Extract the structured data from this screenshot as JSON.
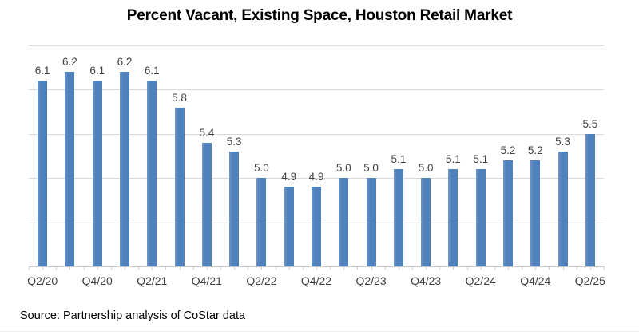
{
  "title": "Percent Vacant, Existing Space, Houston Retail Market",
  "source": "Source: Partnership analysis of CoStar data",
  "chart_data": {
    "type": "bar",
    "title": "Percent Vacant, Existing Space, Houston Retail Market",
    "values": [
      6.1,
      6.2,
      6.1,
      6.2,
      6.1,
      5.8,
      5.4,
      5.3,
      5.0,
      4.9,
      4.9,
      5.0,
      5.0,
      5.1,
      5.0,
      5.1,
      5.1,
      5.2,
      5.2,
      5.3,
      5.5
    ],
    "labels": [
      "6.1",
      "6.2",
      "6.1",
      "6.2",
      "6.1",
      "5.8",
      "5.4",
      "5.3",
      "5.0",
      "4.9",
      "4.9",
      "5.0",
      "5.0",
      "5.1",
      "5.0",
      "5.1",
      "5.1",
      "5.2",
      "5.2",
      "5.3",
      "5.5"
    ],
    "x_tick_labels": [
      "Q2/20",
      "Q4/20",
      "Q2/21",
      "Q4/21",
      "Q2/22",
      "Q4/22",
      "Q2/23",
      "Q4/23",
      "Q2/24",
      "Q4/24",
      "Q2/25"
    ],
    "x_tick_every": 2,
    "ylim": [
      4.0,
      6.5
    ],
    "gridline_step": 0.5,
    "grid": "horizontal",
    "y_axis_labels_visible": false,
    "legend": "none",
    "data_labels_position": "above-bars",
    "source_note": "Source: Partnership analysis of CoStar data",
    "colors": {
      "bar": "#4F81BD",
      "bar_edge_light": "#6D94C6",
      "gridline": "#D9D9D9",
      "axis": "#C9C9C9",
      "text": "#3F3F3F",
      "title": "#000000"
    }
  }
}
